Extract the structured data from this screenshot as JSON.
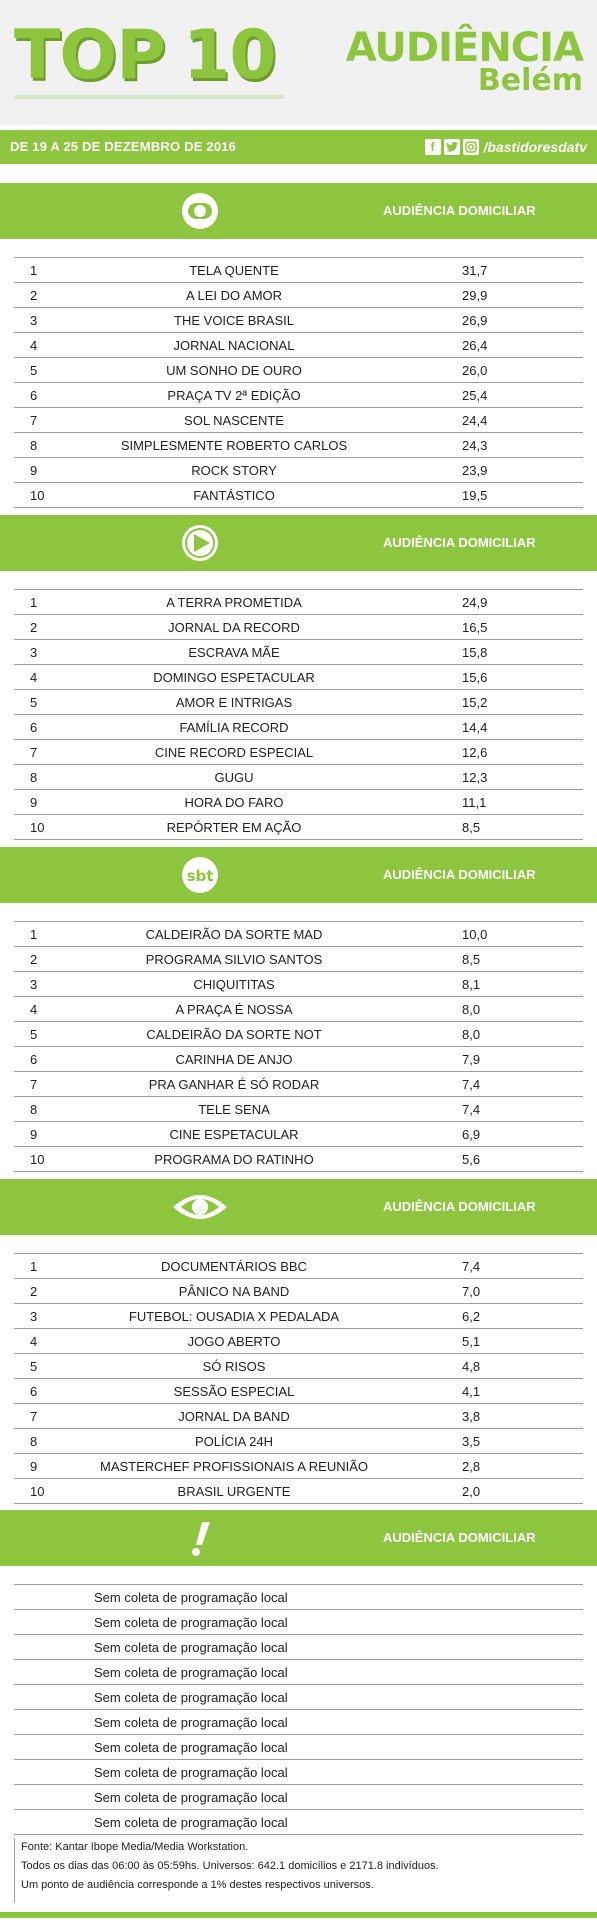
{
  "header": {
    "top_title": "TOP",
    "top_number": "10",
    "title": "AUDIÊNCIA",
    "subtitle": "Belém"
  },
  "date_bar": {
    "period": "DE 19 A 25 DE DEZEMBRO DE 2016",
    "social_handle": "/bastidoresdatv"
  },
  "sections": [
    {
      "logo": "globo-logo-icon",
      "label": "AUDIÊNCIA DOMICILIAR",
      "rows": [
        {
          "num": "1",
          "name": "TELA QUENTE",
          "value": "31,7"
        },
        {
          "num": "2",
          "name": "A LEI DO AMOR",
          "value": "29,9"
        },
        {
          "num": "3",
          "name": "THE VOICE BRASIL",
          "value": "26,9"
        },
        {
          "num": "4",
          "name": "JORNAL NACIONAL",
          "value": "26,4"
        },
        {
          "num": "5",
          "name": "UM SONHO DE OURO",
          "value": "26,0"
        },
        {
          "num": "6",
          "name": "PRAÇA TV 2ª EDIÇÃO",
          "value": "25,4"
        },
        {
          "num": "7",
          "name": "SOL NASCENTE",
          "value": "24,4"
        },
        {
          "num": "8",
          "name": "SIMPLESMENTE ROBERTO CARLOS",
          "value": "24,3"
        },
        {
          "num": "9",
          "name": "ROCK STORY",
          "value": "23,9"
        },
        {
          "num": "10",
          "name": "FANTÁSTICO",
          "value": "19,5"
        }
      ]
    },
    {
      "logo": "record-logo-icon",
      "label": "AUDIÊNCIA DOMICILIAR",
      "rows": [
        {
          "num": "1",
          "name": "A TERRA PROMETIDA",
          "value": "24,9"
        },
        {
          "num": "2",
          "name": "JORNAL DA RECORD",
          "value": "16,5"
        },
        {
          "num": "3",
          "name": "ESCRAVA MÃE",
          "value": "15,8"
        },
        {
          "num": "4",
          "name": "DOMINGO ESPETACULAR",
          "value": "15,6"
        },
        {
          "num": "5",
          "name": "AMOR E INTRIGAS",
          "value": "15,2"
        },
        {
          "num": "6",
          "name": "FAMÍLIA RECORD",
          "value": "14,4"
        },
        {
          "num": "7",
          "name": "CINE RECORD ESPECIAL",
          "value": "12,6"
        },
        {
          "num": "8",
          "name": "GUGU",
          "value": "12,3"
        },
        {
          "num": "9",
          "name": "HORA DO FARO",
          "value": "11,1"
        },
        {
          "num": "10",
          "name": "REPÓRTER EM AÇÃO",
          "value": "8,5"
        }
      ]
    },
    {
      "logo": "sbt-logo-icon",
      "logo_text": "sbt",
      "label": "AUDIÊNCIA DOMICILIAR",
      "rows": [
        {
          "num": "1",
          "name": "CALDEIRÃO DA SORTE MAD",
          "value": "10,0"
        },
        {
          "num": "2",
          "name": "PROGRAMA SILVIO SANTOS",
          "value": "8,5"
        },
        {
          "num": "3",
          "name": "CHIQUITITAS",
          "value": "8,1"
        },
        {
          "num": "4",
          "name": "A PRAÇA É NOSSA",
          "value": "8,0"
        },
        {
          "num": "5",
          "name": "CALDEIRÃO DA SORTE NOT",
          "value": "8,0"
        },
        {
          "num": "6",
          "name": "CARINHA DE ANJO",
          "value": "7,9"
        },
        {
          "num": "7",
          "name": "PRA GANHAR É SÓ RODAR",
          "value": "7,4"
        },
        {
          "num": "8",
          "name": "TELE SENA",
          "value": "7,4"
        },
        {
          "num": "9",
          "name": "CINE ESPETACULAR",
          "value": "6,9"
        },
        {
          "num": "10",
          "name": "PROGRAMA DO RATINHO",
          "value": "5,6"
        }
      ]
    },
    {
      "logo": "band-logo-icon",
      "label": "AUDIÊNCIA DOMICILIAR",
      "rows": [
        {
          "num": "1",
          "name": "DOCUMENTÁRIOS BBC",
          "value": "7,4"
        },
        {
          "num": "2",
          "name": "PÂNICO NA BAND",
          "value": "7,0"
        },
        {
          "num": "3",
          "name": "FUTEBOL: OUSADIA X PEDALADA",
          "value": "6,2"
        },
        {
          "num": "4",
          "name": "JOGO ABERTO",
          "value": "5,1"
        },
        {
          "num": "5",
          "name": "SÓ RISOS",
          "value": "4,8"
        },
        {
          "num": "6",
          "name": "SESSÃO ESPECIAL",
          "value": "4,1"
        },
        {
          "num": "7",
          "name": "JORNAL DA BAND",
          "value": "3,8"
        },
        {
          "num": "8",
          "name": "POLÍCIA 24H",
          "value": "3,5"
        },
        {
          "num": "9",
          "name": "MASTERCHEF PROFISSIONAIS A REUNIÃO",
          "value": "2,8"
        },
        {
          "num": "10",
          "name": "BRASIL URGENTE",
          "value": "2,0"
        }
      ]
    },
    {
      "logo": "redetv-logo-icon",
      "label": "AUDIÊNCIA DOMICILIAR",
      "empty_rows": [
        "Sem coleta de programação local",
        "Sem coleta de programação local",
        "Sem coleta de programação local",
        "Sem coleta de programação local",
        "Sem coleta de programação local",
        "Sem coleta de programação local",
        "Sem coleta de programação local",
        "Sem coleta de programação local",
        "Sem coleta de programação local",
        "Sem coleta de programação local"
      ]
    }
  ],
  "footer": {
    "line1": "Fonte: Kantar Ibope Media/Media Workstation.",
    "line2": "Todos os dias das 06:00 às 05:59hs. Universos: 642.1 domicílios e 2171.8 indivíduos.",
    "line3": "Um ponto de audiência corresponde a 1% destes respectivos universos."
  },
  "colors": {
    "accent": "#8dc53e"
  }
}
